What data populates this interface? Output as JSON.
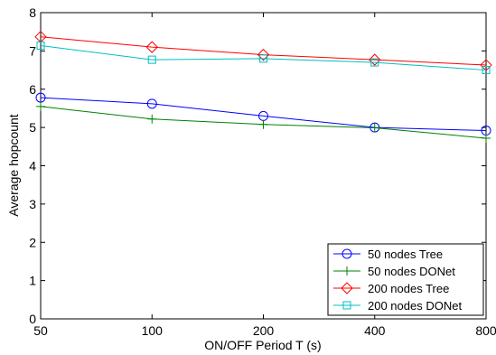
{
  "chart_data": {
    "type": "line",
    "xlabel": "ON/OFF Period T (s)",
    "ylabel": "Average hopcount",
    "x_scale": "categorical",
    "categories": [
      "50",
      "100",
      "200",
      "400",
      "800"
    ],
    "ylim": [
      0,
      8
    ],
    "yticks": [
      0,
      1,
      2,
      3,
      4,
      5,
      6,
      7,
      8
    ],
    "grid": false,
    "legend_position": "bottom-right",
    "series": [
      {
        "name": "50 nodes Tree",
        "color": "#0000ff",
        "marker": "circle",
        "values": [
          5.78,
          5.62,
          5.3,
          5.0,
          4.92
        ]
      },
      {
        "name": "50 nodes DONet",
        "color": "#008000",
        "marker": "plus",
        "values": [
          5.55,
          5.22,
          5.08,
          4.99,
          4.72
        ]
      },
      {
        "name": "200 nodes Tree",
        "color": "#ff0000",
        "marker": "diamond",
        "values": [
          7.37,
          7.1,
          6.9,
          6.77,
          6.63
        ]
      },
      {
        "name": "200 nodes DONet",
        "color": "#00bfbf",
        "marker": "square",
        "values": [
          7.14,
          6.77,
          6.8,
          6.7,
          6.5
        ]
      }
    ]
  }
}
